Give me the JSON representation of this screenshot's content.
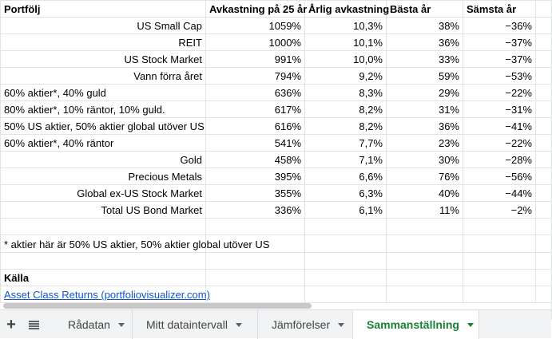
{
  "headers": [
    "Portfölj",
    "Avkastning på 25 år",
    "Årlig avkastning",
    "Bästa år",
    "Sämsta år"
  ],
  "rows": [
    {
      "name": "US Small Cap",
      "align": "r",
      "total": "1059%",
      "annual": "10,3%",
      "best": "38%",
      "worst": "−36%"
    },
    {
      "name": "REIT",
      "align": "r",
      "total": "1000%",
      "annual": "10,1%",
      "best": "36%",
      "worst": "−37%"
    },
    {
      "name": "US Stock Market",
      "align": "r",
      "total": "991%",
      "annual": "10,0%",
      "best": "33%",
      "worst": "−37%"
    },
    {
      "name": "Vann förra året",
      "align": "r",
      "total": "794%",
      "annual": "9,2%",
      "best": "59%",
      "worst": "−53%"
    },
    {
      "name": "60% aktier*, 40% guld",
      "align": "l",
      "total": "636%",
      "annual": "8,3%",
      "best": "29%",
      "worst": "−22%"
    },
    {
      "name": "80% aktier*, 10% räntor, 10% guld.",
      "align": "l",
      "total": "617%",
      "annual": "8,2%",
      "best": "31%",
      "worst": "−31%"
    },
    {
      "name": "50% US aktier, 50% aktier global utöver US",
      "align": "l",
      "total": "616%",
      "annual": "8,2%",
      "best": "36%",
      "worst": "−41%"
    },
    {
      "name": "60% aktier*, 40% räntor",
      "align": "l",
      "total": "541%",
      "annual": "7,7%",
      "best": "23%",
      "worst": "−22%"
    },
    {
      "name": "Gold",
      "align": "r",
      "total": "458%",
      "annual": "7,1%",
      "best": "30%",
      "worst": "−28%"
    },
    {
      "name": "Precious Metals",
      "align": "r",
      "total": "395%",
      "annual": "6,6%",
      "best": "76%",
      "worst": "−56%"
    },
    {
      "name": "Global ex-US Stock Market",
      "align": "r",
      "total": "355%",
      "annual": "6,3%",
      "best": "40%",
      "worst": "−44%"
    },
    {
      "name": "Total US Bond Market",
      "align": "r",
      "total": "336%",
      "annual": "6,1%",
      "best": "11%",
      "worst": "−2%"
    }
  ],
  "footnote": "* aktier här är 50% US aktier, 50% aktier global utöver US",
  "source_heading": "Källa",
  "source_link": "Asset Class Returns (portfoliovisualizer.com)",
  "tabs": [
    {
      "label": "Rådatan",
      "active": false
    },
    {
      "label": "Mitt dataintervall",
      "active": false
    },
    {
      "label": "Jämförelser",
      "active": false
    },
    {
      "label": "Sammanställning",
      "active": true
    }
  ],
  "colors": {
    "active_tab": "#188038",
    "link": "#1155cc",
    "gridline": "#e2e3e3"
  },
  "icons": {
    "add": "plus-icon",
    "list": "sheet-list-icon",
    "dropdown": "caret-down-icon"
  }
}
